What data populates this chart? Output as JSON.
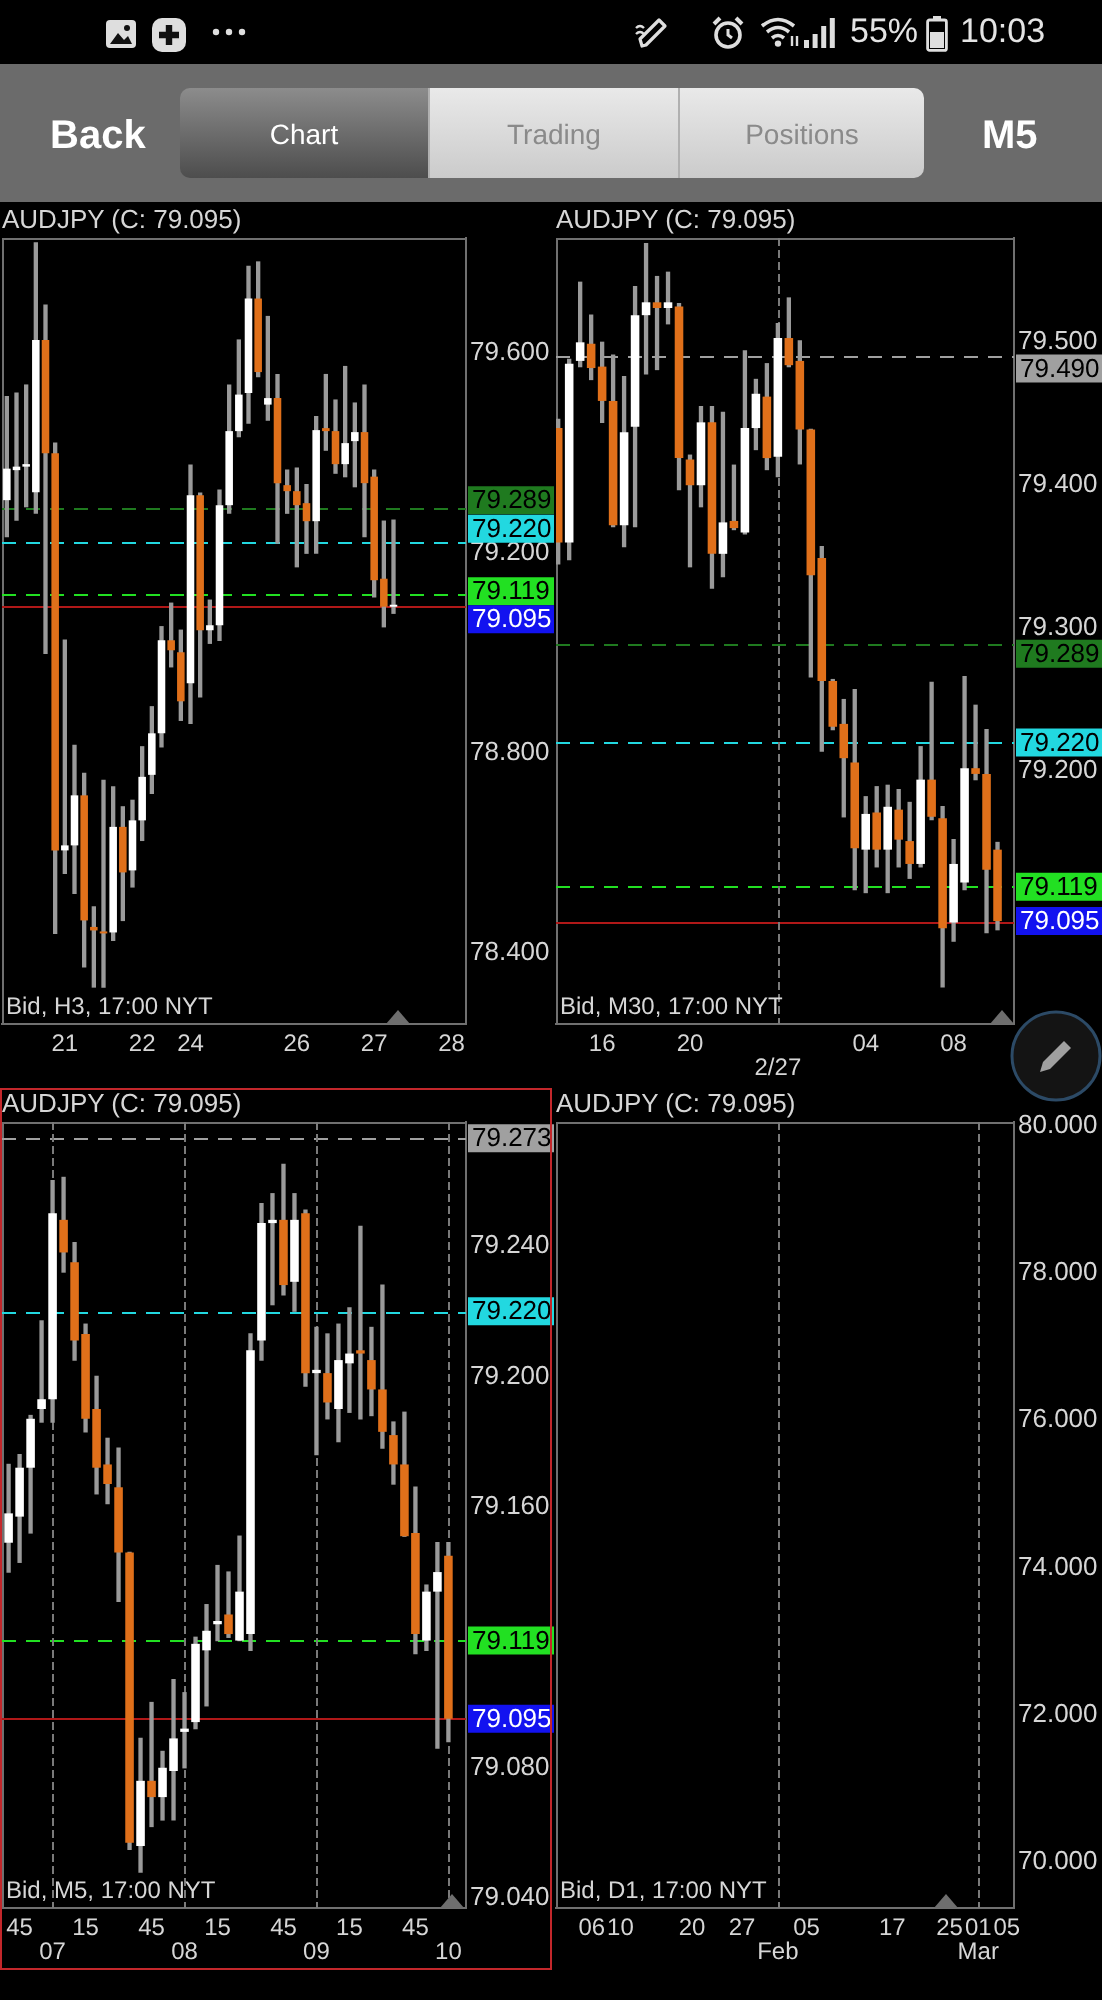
{
  "chart_data": [
    {
      "type": "other",
      "annotations": [
        "55%",
        "10:03",
        "Back",
        "Chart",
        "Trading",
        "Positions",
        "M5"
      ]
    },
    {
      "type": "candlestick",
      "title": "AUDJPY (C: 79.095)",
      "categories": [
        null,
        null,
        null,
        null,
        null,
        null,
        "21",
        null,
        null,
        null,
        null,
        null,
        null,
        null,
        "22",
        null,
        null,
        null,
        null,
        "24",
        null,
        null,
        null,
        null,
        null,
        null,
        null,
        null,
        null,
        null,
        "26",
        null,
        null,
        null,
        null,
        null,
        null,
        null,
        "27",
        null,
        null,
        null,
        null,
        null,
        null,
        null,
        "28",
        null
      ],
      "ohlc": [
        [
          79.305,
          79.512,
          79.232,
          79.368
        ],
        [
          79.365,
          79.519,
          79.265,
          79.372
        ],
        [
          79.372,
          79.535,
          79.292,
          79.377
        ],
        [
          79.321,
          79.819,
          79.279,
          79.625
        ],
        [
          79.625,
          79.695,
          78.999,
          79.399
        ],
        [
          79.399,
          79.419,
          78.439,
          78.605
        ],
        [
          78.605,
          79.025,
          78.559,
          78.615
        ],
        [
          78.615,
          78.815,
          78.519,
          78.715
        ],
        [
          78.715,
          78.759,
          78.372,
          78.465
        ],
        [
          78.452,
          78.492,
          78.332,
          78.445
        ],
        [
          78.443,
          78.745,
          78.332,
          78.439
        ],
        [
          78.441,
          78.732,
          78.425,
          78.652
        ],
        [
          78.652,
          78.692,
          78.465,
          78.561
        ],
        [
          78.565,
          78.705,
          78.532,
          78.665
        ],
        [
          78.665,
          78.812,
          78.625,
          78.752
        ],
        [
          78.756,
          78.892,
          78.719,
          78.839
        ],
        [
          78.839,
          79.052,
          78.812,
          79.025
        ],
        [
          79.025,
          79.099,
          78.972,
          79.005
        ],
        [
          79.001,
          79.045,
          78.865,
          78.903
        ],
        [
          78.939,
          79.375,
          78.859,
          79.315
        ],
        [
          79.315,
          79.319,
          78.912,
          79.045
        ],
        [
          79.045,
          79.105,
          79.019,
          79.055
        ],
        [
          79.055,
          79.325,
          79.025,
          79.295
        ],
        [
          79.295,
          79.535,
          79.279,
          79.443
        ],
        [
          79.443,
          79.625,
          79.432,
          79.516
        ],
        [
          79.519,
          79.772,
          79.459,
          79.708
        ],
        [
          79.708,
          79.781,
          79.552,
          79.561
        ],
        [
          79.496,
          79.672,
          79.465,
          79.509
        ],
        [
          79.509,
          79.556,
          79.219,
          79.339
        ],
        [
          79.335,
          79.365,
          79.279,
          79.323
        ],
        [
          79.323,
          79.369,
          79.172,
          79.295
        ],
        [
          79.299,
          79.336,
          79.199,
          79.263
        ],
        [
          79.263,
          79.472,
          79.199,
          79.445
        ],
        [
          79.449,
          79.556,
          79.405,
          79.443
        ],
        [
          79.443,
          79.505,
          79.359,
          79.377
        ],
        [
          79.377,
          79.572,
          79.352,
          79.419
        ],
        [
          79.423,
          79.499,
          79.332,
          79.441
        ],
        [
          79.441,
          79.535,
          79.232,
          79.339
        ],
        [
          79.352,
          79.365,
          79.112,
          79.145
        ],
        [
          79.148,
          79.263,
          79.052,
          79.092
        ],
        [
          79.092,
          79.265,
          79.079,
          79.095
        ],
        null,
        null,
        null,
        null,
        null,
        null,
        null
      ],
      "colors": [
        "#ffffff",
        "#ffffff",
        "#ffffff",
        "#ffffff",
        "#e0701a",
        "#e0701a",
        "#ffffff",
        "#ffffff",
        "#e0701a",
        "#e0701a",
        "#e0701a",
        "#ffffff",
        "#e0701a",
        "#ffffff",
        "#ffffff",
        "#ffffff",
        "#ffffff",
        "#e0701a",
        "#e0701a",
        "#ffffff",
        "#e0701a",
        "#ffffff",
        "#ffffff",
        "#ffffff",
        "#ffffff",
        "#ffffff",
        "#e0701a",
        "#ffffff",
        "#e0701a",
        "#e0701a",
        "#e0701a",
        "#e0701a",
        "#ffffff",
        "#e0701a",
        "#e0701a",
        "#ffffff",
        "#ffffff",
        "#e0701a",
        "#e0701a",
        "#e0701a",
        "#ffffff",
        null,
        null,
        null,
        null,
        null,
        null,
        null
      ],
      "ylim": [
        78.258,
        79.829
      ],
      "yticks": [
        {
          "value": 78.4,
          "label": "78.400"
        },
        {
          "value": 78.8,
          "label": "78.800"
        },
        {
          "value": 79.2,
          "label": "79.200"
        },
        {
          "value": 79.6,
          "label": "79.600"
        }
      ],
      "ref_lines": [
        {
          "axis": "y",
          "value": 79.289,
          "label": "79.289",
          "color": "#1f7a1f",
          "line_style": "dashed"
        },
        {
          "axis": "y",
          "value": 79.22,
          "label": "79.220",
          "color": "#22d8e0",
          "line_style": "dashed"
        },
        {
          "axis": "y",
          "value": 79.119,
          "label": "79.119",
          "color": "#22e022",
          "line_style": "dashed"
        },
        {
          "axis": "y",
          "value": 79.095,
          "label": "79.095",
          "color": "#b01818",
          "line_style": "solid"
        }
      ],
      "annotations": [
        "Bid, H3, 17:00 NYT"
      ]
    },
    {
      "type": "candlestick",
      "title": "AUDJPY (C: 79.095)",
      "x": [
        "--02-26T14:00",
        "--02-26T14:30",
        "--02-26T15:00",
        "--02-26T15:30",
        "--02-26T16:00",
        "--02-26T16:30",
        "--02-26T17:00",
        "--02-26T17:30",
        "--02-26T18:00",
        "--02-26T18:30",
        "--02-26T19:00",
        "--02-26T19:30",
        "--02-26T20:00",
        "--02-26T20:30",
        "--02-26T21:00",
        "--02-26T21:30",
        "--02-26T22:00",
        "--02-26T22:30",
        "--02-26T23:00",
        "--02-26T23:30",
        "--02-27T00:00",
        "--02-27T00:30",
        "--02-27T01:00",
        "--02-27T01:30",
        "--02-27T02:00",
        "--02-27T02:30",
        "--02-27T03:00",
        "--02-27T03:30",
        "--02-27T04:00",
        "--02-27T04:30",
        "--02-27T05:00",
        "--02-27T05:30",
        "--02-27T06:00",
        "--02-27T06:30",
        "--02-27T07:00",
        "--02-27T07:30",
        "--02-27T08:00",
        "--02-27T08:30",
        "--02-27T09:00",
        "--02-27T09:30",
        "--02-27T10:00"
      ],
      "ohlc": [
        [
          79.44,
          79.446,
          79.345,
          79.36
        ],
        [
          79.36,
          79.488,
          79.348,
          79.485
        ],
        [
          79.487,
          79.542,
          79.483,
          79.5
        ],
        [
          79.499,
          79.519,
          79.474,
          79.482
        ],
        [
          79.483,
          79.5,
          79.444,
          79.459
        ],
        [
          79.459,
          79.491,
          79.371,
          79.372
        ],
        [
          79.372,
          79.476,
          79.357,
          79.437
        ],
        [
          79.441,
          79.539,
          79.371,
          79.519
        ],
        [
          79.519,
          79.569,
          79.478,
          79.528
        ],
        [
          79.528,
          79.546,
          79.481,
          79.524
        ],
        [
          79.524,
          79.549,
          79.513,
          79.528
        ],
        [
          79.525,
          79.527,
          79.397,
          79.419
        ],
        [
          79.418,
          79.421,
          79.343,
          79.4
        ],
        [
          79.4,
          79.455,
          79.385,
          79.444
        ],
        [
          79.444,
          79.455,
          79.328,
          79.352
        ],
        [
          79.352,
          79.451,
          79.336,
          79.374
        ],
        [
          79.375,
          79.414,
          79.369,
          79.37
        ],
        [
          79.367,
          79.494,
          79.366,
          79.44
        ],
        [
          79.44,
          79.474,
          79.425,
          79.464
        ],
        [
          79.462,
          79.485,
          79.411,
          79.419
        ],
        [
          79.42,
          79.513,
          79.406,
          79.503
        ],
        [
          79.503,
          79.531,
          79.483,
          79.484
        ],
        [
          79.487,
          79.501,
          79.415,
          79.439
        ],
        [
          79.439,
          79.439,
          79.266,
          79.337
        ],
        [
          79.349,
          79.357,
          79.214,
          79.263
        ],
        [
          79.263,
          79.264,
          79.229,
          79.231
        ],
        [
          79.233,
          79.25,
          79.168,
          79.209
        ],
        [
          79.206,
          79.257,
          79.117,
          79.146
        ],
        [
          79.145,
          79.182,
          79.115,
          79.17
        ],
        [
          79.171,
          79.189,
          79.133,
          79.145
        ],
        [
          79.145,
          79.19,
          79.115,
          79.175
        ],
        [
          79.173,
          79.187,
          79.133,
          79.152
        ],
        [
          79.151,
          79.178,
          79.125,
          79.135
        ],
        [
          79.135,
          79.217,
          79.133,
          79.194
        ],
        [
          79.194,
          79.262,
          79.166,
          79.168
        ],
        [
          79.167,
          79.175,
          79.049,
          79.09
        ],
        [
          79.094,
          79.152,
          79.081,
          79.135
        ],
        [
          79.122,
          79.266,
          79.117,
          79.202
        ],
        [
          79.202,
          79.246,
          79.194,
          79.198
        ],
        [
          79.198,
          79.229,
          79.087,
          79.131
        ],
        [
          79.145,
          79.15,
          79.089,
          79.095
        ]
      ],
      "colors": [
        "#e0701a",
        "#ffffff",
        "#ffffff",
        "#e0701a",
        "#e0701a",
        "#e0701a",
        "#ffffff",
        "#ffffff",
        "#ffffff",
        "#e0701a",
        "#ffffff",
        "#e0701a",
        "#e0701a",
        "#ffffff",
        "#e0701a",
        "#ffffff",
        "#e0701a",
        "#ffffff",
        "#ffffff",
        "#e0701a",
        "#ffffff",
        "#e0701a",
        "#e0701a",
        "#e0701a",
        "#e0701a",
        "#e0701a",
        "#e0701a",
        "#e0701a",
        "#ffffff",
        "#e0701a",
        "#ffffff",
        "#e0701a",
        "#e0701a",
        "#ffffff",
        "#e0701a",
        "#e0701a",
        "#ffffff",
        "#ffffff",
        "#e0701a",
        "#e0701a",
        "#e0701a"
      ],
      "xlim": [
        "--02-26T13:54",
        "--02-27T10:45"
      ],
      "xticks": [
        {
          "value": "--02-26T16:00",
          "label": "16"
        },
        {
          "value": "--02-26T20:00",
          "label": "20"
        },
        {
          "value": "--02-27T04:00",
          "label": "04"
        },
        {
          "value": "--02-27T08:00",
          "label": "08"
        }
      ],
      "ylim": [
        79.023,
        79.573
      ],
      "yticks": [
        {
          "value": 79.2,
          "label": "79.200"
        },
        {
          "value": 79.3,
          "label": "79.300"
        },
        {
          "value": 79.4,
          "label": "79.400"
        },
        {
          "value": 79.5,
          "label": "79.500"
        }
      ],
      "ref_lines": [
        {
          "axis": "y",
          "value": 79.49,
          "label": "79.490",
          "color": "#a0a0a0",
          "line_style": "dashed"
        },
        {
          "axis": "y",
          "value": 79.289,
          "label": "79.289",
          "color": "#1f7a1f",
          "line_style": "dashed"
        },
        {
          "axis": "y",
          "value": 79.22,
          "label": "79.220",
          "color": "#22d8e0",
          "line_style": "dashed"
        },
        {
          "axis": "y",
          "value": 79.119,
          "label": "79.119",
          "color": "#22e022",
          "line_style": "dashed"
        },
        {
          "axis": "y",
          "value": 79.095,
          "label": "79.095",
          "color": "#b01818",
          "line_style": "solid"
        },
        {
          "axis": "x",
          "value": "--02-27T00:00",
          "label": "2/27",
          "color": "#7a7a7a",
          "line_style": "dotted"
        }
      ],
      "annotations": [
        "Bid, M30, 17:00 NYT"
      ]
    },
    {
      "type": "candlestick",
      "title": "AUDJPY (C: 79.095)",
      "x": [
        "--02-27T06:40",
        "--02-27T06:45",
        "--02-27T06:50",
        "--02-27T06:55",
        "--02-27T07:00",
        "--02-27T07:05",
        "--02-27T07:10",
        "--02-27T07:15",
        "--02-27T07:20",
        "--02-27T07:25",
        "--02-27T07:30",
        "--02-27T07:35",
        "--02-27T07:40",
        "--02-27T07:45",
        "--02-27T07:50",
        "--02-27T07:55",
        "--02-27T08:00",
        "--02-27T08:05",
        "--02-27T08:10",
        "--02-27T08:15",
        "--02-27T08:20",
        "--02-27T08:25",
        "--02-27T08:30",
        "--02-27T08:35",
        "--02-27T08:40",
        "--02-27T08:45",
        "--02-27T08:50",
        "--02-27T08:55",
        "--02-27T09:00",
        "--02-27T09:05",
        "--02-27T09:10",
        "--02-27T09:15",
        "--02-27T09:20",
        "--02-27T09:25",
        "--02-27T09:30",
        "--02-27T09:35",
        "--02-27T09:40",
        "--02-27T09:45",
        "--02-27T09:50",
        "--02-27T09:55",
        "--02-27T10:00"
      ],
      "ohlc": [
        [
          79.149,
          79.173,
          79.14,
          79.158
        ],
        [
          79.157,
          79.176,
          79.143,
          79.172
        ],
        [
          79.172,
          79.188,
          79.152,
          79.187
        ],
        [
          79.19,
          79.217,
          79.186,
          79.193
        ],
        [
          79.193,
          79.26,
          79.186,
          79.25
        ],
        [
          79.248,
          79.261,
          79.232,
          79.238
        ],
        [
          79.235,
          79.241,
          79.205,
          79.211
        ],
        [
          79.213,
          79.216,
          79.183,
          79.187
        ],
        [
          79.19,
          79.2,
          79.164,
          79.172
        ],
        [
          79.173,
          79.181,
          79.161,
          79.167
        ],
        [
          79.166,
          79.178,
          79.131,
          79.146
        ],
        [
          79.146,
          79.146,
          79.055,
          79.057
        ],
        [
          79.056,
          79.089,
          79.048,
          79.076
        ],
        [
          79.076,
          79.1,
          79.062,
          79.071
        ],
        [
          79.071,
          79.085,
          79.064,
          79.08
        ],
        [
          79.079,
          79.107,
          79.064,
          79.089
        ],
        [
          79.091,
          79.103,
          79.08,
          79.092
        ],
        [
          79.094,
          79.12,
          79.092,
          79.118
        ],
        [
          79.116,
          79.13,
          79.099,
          79.122
        ],
        [
          79.124,
          79.142,
          79.119,
          79.125
        ],
        [
          79.127,
          79.14,
          79.12,
          79.121
        ],
        [
          79.119,
          79.151,
          79.119,
          79.134
        ],
        [
          79.121,
          79.213,
          79.116,
          79.208
        ],
        [
          79.211,
          79.253,
          79.205,
          79.247
        ],
        [
          79.247,
          79.256,
          79.222,
          79.248
        ],
        [
          79.248,
          79.265,
          79.225,
          79.228
        ],
        [
          79.229,
          79.256,
          79.22,
          79.248
        ],
        [
          79.25,
          79.251,
          79.197,
          79.201
        ],
        [
          79.201,
          79.215,
          79.176,
          79.202
        ],
        [
          79.201,
          79.213,
          79.187,
          79.192
        ],
        [
          79.19,
          79.216,
          79.18,
          79.205
        ],
        [
          79.204,
          79.221,
          79.189,
          79.207
        ],
        [
          79.208,
          79.246,
          79.187,
          79.207
        ],
        [
          79.205,
          79.215,
          79.188,
          79.196
        ],
        [
          79.196,
          79.228,
          79.178,
          79.183
        ],
        [
          79.182,
          79.186,
          79.167,
          79.173
        ],
        [
          79.173,
          79.189,
          79.151,
          79.151
        ],
        [
          79.152,
          79.166,
          79.115,
          79.121
        ],
        [
          79.119,
          79.136,
          79.116,
          79.134
        ],
        [
          79.134,
          79.149,
          79.086,
          79.14
        ],
        [
          79.145,
          79.149,
          79.088,
          79.095
        ]
      ],
      "colors": [
        "#ffffff",
        "#ffffff",
        "#ffffff",
        "#ffffff",
        "#ffffff",
        "#e0701a",
        "#e0701a",
        "#e0701a",
        "#e0701a",
        "#e0701a",
        "#e0701a",
        "#e0701a",
        "#ffffff",
        "#e0701a",
        "#ffffff",
        "#ffffff",
        "#ffffff",
        "#ffffff",
        "#ffffff",
        "#ffffff",
        "#e0701a",
        "#ffffff",
        "#ffffff",
        "#ffffff",
        "#ffffff",
        "#e0701a",
        "#ffffff",
        "#e0701a",
        "#ffffff",
        "#e0701a",
        "#ffffff",
        "#ffffff",
        "#e0701a",
        "#e0701a",
        "#e0701a",
        "#e0701a",
        "#e0701a",
        "#e0701a",
        "#ffffff",
        "#ffffff",
        "#e0701a"
      ],
      "xlim": [
        "--02-27T06:37",
        "--02-27T10:08"
      ],
      "xticks": [
        {
          "value": "--02-27T06:45",
          "label": "45"
        },
        {
          "value": "--02-27T07:15",
          "label": "15"
        },
        {
          "value": "--02-27T07:45",
          "label": "45"
        },
        {
          "value": "--02-27T08:15",
          "label": "15"
        },
        {
          "value": "--02-27T08:45",
          "label": "45"
        },
        {
          "value": "--02-27T09:15",
          "label": "15"
        },
        {
          "value": "--02-27T09:45",
          "label": "45"
        }
      ],
      "ylim": [
        79.037,
        79.278
      ],
      "yticks": [
        {
          "value": 79.04,
          "label": "79.040"
        },
        {
          "value": 79.08,
          "label": "79.080"
        },
        {
          "value": 79.16,
          "label": "79.160"
        },
        {
          "value": 79.2,
          "label": "79.200"
        },
        {
          "value": 79.24,
          "label": "79.240"
        }
      ],
      "ref_lines": [
        {
          "axis": "y",
          "value": 79.273,
          "label": "79.273",
          "color": "#a0a0a0",
          "line_style": "dashed"
        },
        {
          "axis": "y",
          "value": 79.22,
          "label": "79.220",
          "color": "#22d8e0",
          "line_style": "dashed"
        },
        {
          "axis": "y",
          "value": 79.119,
          "label": "79.119",
          "color": "#22e022",
          "line_style": "dashed"
        },
        {
          "axis": "y",
          "value": 79.095,
          "label": "79.095",
          "color": "#b01818",
          "line_style": "solid"
        },
        {
          "axis": "x",
          "value": "--02-27T07:00",
          "label": "07",
          "color": "#7a7a7a",
          "line_style": "dotted"
        },
        {
          "axis": "x",
          "value": "--02-27T08:00",
          "label": "08",
          "color": "#7a7a7a",
          "line_style": "dotted"
        },
        {
          "axis": "x",
          "value": "--02-27T09:00",
          "label": "09",
          "color": "#7a7a7a",
          "line_style": "dotted"
        },
        {
          "axis": "x",
          "value": "--02-27T10:00",
          "label": "10",
          "color": "#7a7a7a",
          "line_style": "dotted"
        }
      ],
      "annotations": [
        "Bid, M5, 17:00 NYT"
      ]
    },
    {
      "type": "candlestick",
      "title": "AUDJPY (C: 79.095)",
      "xlim": [
        "--01-01",
        "--03-06"
      ],
      "xticks": [
        {
          "value": "--01-06",
          "label": "06"
        },
        {
          "value": "--01-10",
          "label": "10"
        },
        {
          "value": "--01-20",
          "label": "20"
        },
        {
          "value": "--01-27",
          "label": "27"
        },
        {
          "value": "--02-05",
          "label": "05"
        },
        {
          "value": "--02-17",
          "label": "17"
        },
        {
          "value": "--02-25",
          "label": "25"
        },
        {
          "value": "--03-01",
          "label": "01"
        },
        {
          "value": "--03-05",
          "label": "05"
        }
      ],
      "ylim": [
        69.38,
        80.05
      ],
      "yticks": [
        {
          "value": 70,
          "label": "70.000"
        },
        {
          "value": 72,
          "label": "72.000"
        },
        {
          "value": 74,
          "label": "74.000"
        },
        {
          "value": 76,
          "label": "76.000"
        },
        {
          "value": 78,
          "label": "78.000"
        },
        {
          "value": 80,
          "label": "80.000"
        }
      ],
      "ref_lines": [
        {
          "axis": "x",
          "value": "--02-01",
          "label": "Feb",
          "color": "#7a7a7a",
          "line_style": "dotted"
        },
        {
          "axis": "x",
          "value": "--03-01",
          "label": "Mar",
          "color": "#7a7a7a",
          "line_style": "dotted"
        }
      ],
      "annotations": [
        "Bid, D1, 17:00 NYT"
      ]
    }
  ]
}
